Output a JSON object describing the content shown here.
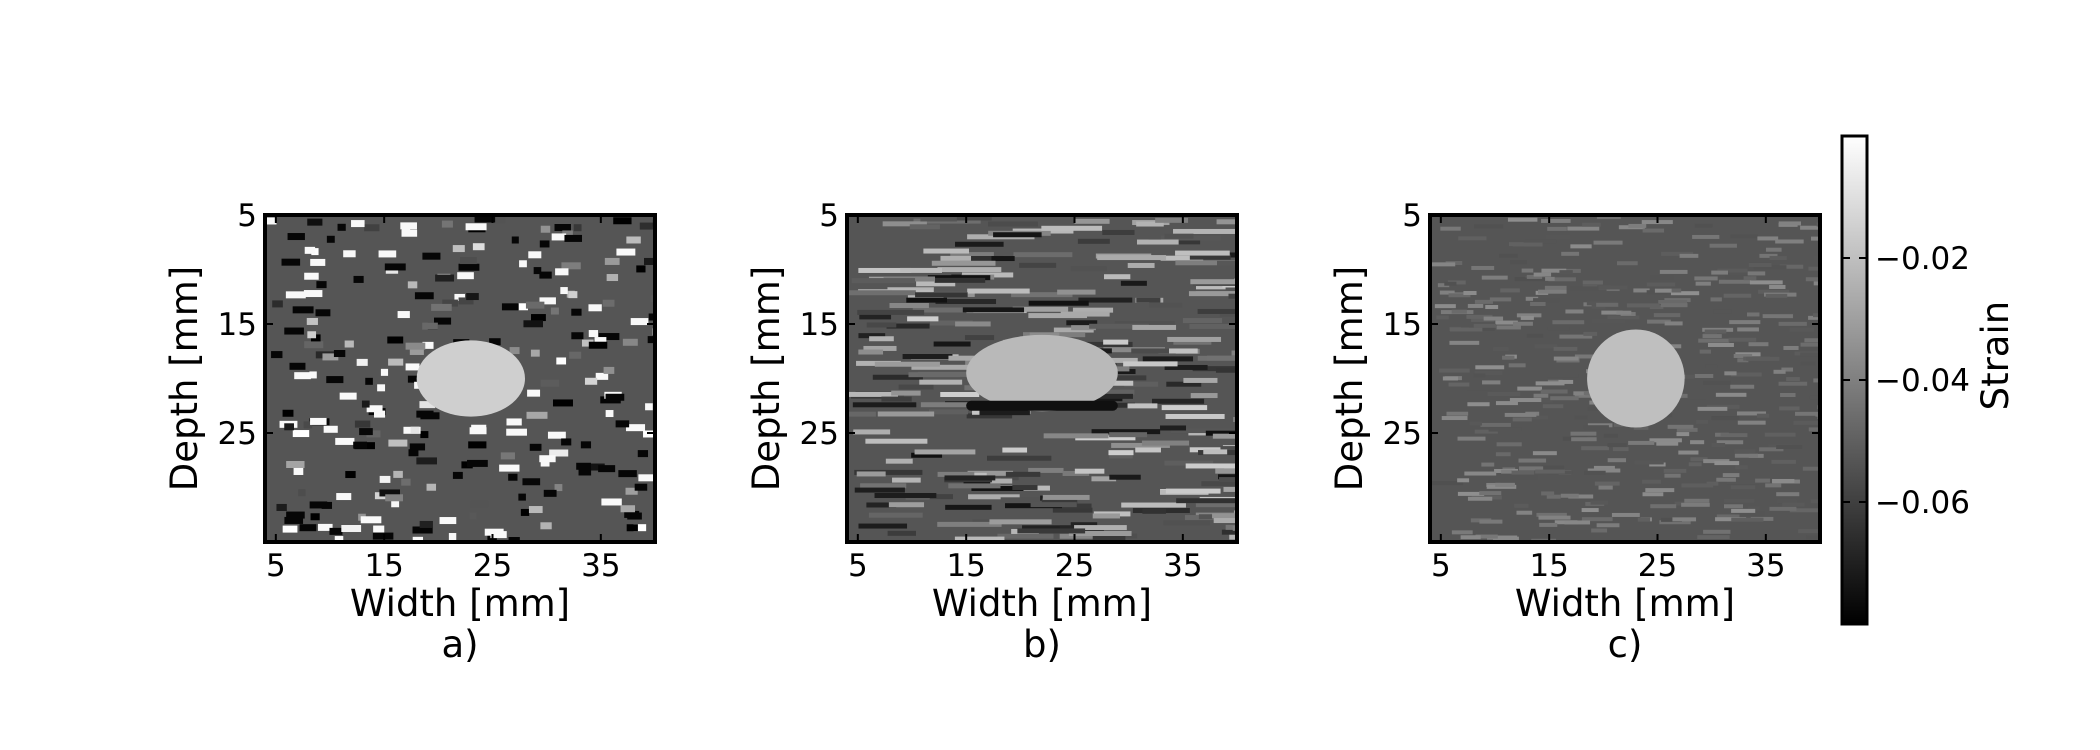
{
  "chart_data": [
    {
      "type": "heatmap",
      "panel_label": "a)",
      "xlabel": "Width [mm]",
      "ylabel": "Depth [mm]",
      "xlim": [
        4,
        40
      ],
      "ylim": [
        35,
        5
      ],
      "xticks": [
        5,
        15,
        25,
        35
      ],
      "yticks": [
        5,
        15,
        25
      ],
      "colormap": "gray",
      "features": [
        {
          "kind": "inclusion",
          "cx": 23,
          "cy": 20,
          "rx": 5,
          "ry": 3.5,
          "strain": -0.015
        },
        {
          "kind": "noise",
          "style": "salt-and-pepper",
          "amplitude": 0.05
        }
      ]
    },
    {
      "type": "heatmap",
      "panel_label": "b)",
      "xlabel": "Width [mm]",
      "ylabel": "Depth [mm]",
      "xlim": [
        4,
        40
      ],
      "ylim": [
        35,
        5
      ],
      "xticks": [
        5,
        15,
        25,
        35
      ],
      "yticks": [
        5,
        15,
        25
      ],
      "colormap": "gray",
      "features": [
        {
          "kind": "inclusion",
          "cx": 22,
          "cy": 19.5,
          "rx": 7,
          "ry": 3.5,
          "strain": -0.022
        },
        {
          "kind": "dark_band",
          "y": 22.5,
          "x0": 15,
          "x1": 29,
          "strain": -0.075
        },
        {
          "kind": "noise",
          "style": "horizontal streaks",
          "amplitude": 0.03
        }
      ]
    },
    {
      "type": "heatmap",
      "panel_label": "c)",
      "xlabel": "Width [mm]",
      "ylabel": "Depth [mm]",
      "xlim": [
        4,
        40
      ],
      "ylim": [
        35,
        5
      ],
      "xticks": [
        5,
        15,
        25,
        35
      ],
      "yticks": [
        5,
        15,
        25
      ],
      "colormap": "gray",
      "features": [
        {
          "kind": "inclusion",
          "cx": 23,
          "cy": 20,
          "rx": 4.5,
          "ry": 4.5,
          "strain": -0.02
        },
        {
          "kind": "noise",
          "style": "fine texture",
          "amplitude": 0.01
        }
      ]
    }
  ],
  "colorbar": {
    "label": "Strain",
    "range": [
      -0.08,
      0.0
    ],
    "ticks": [
      -0.02,
      -0.04,
      -0.06
    ],
    "tick_labels": [
      "−0.02",
      "−0.04",
      "−0.06"
    ],
    "colormap": "gray"
  },
  "colors": {
    "background": "#555555",
    "inclusion": "#dcdcdc",
    "frame": "#000000"
  }
}
